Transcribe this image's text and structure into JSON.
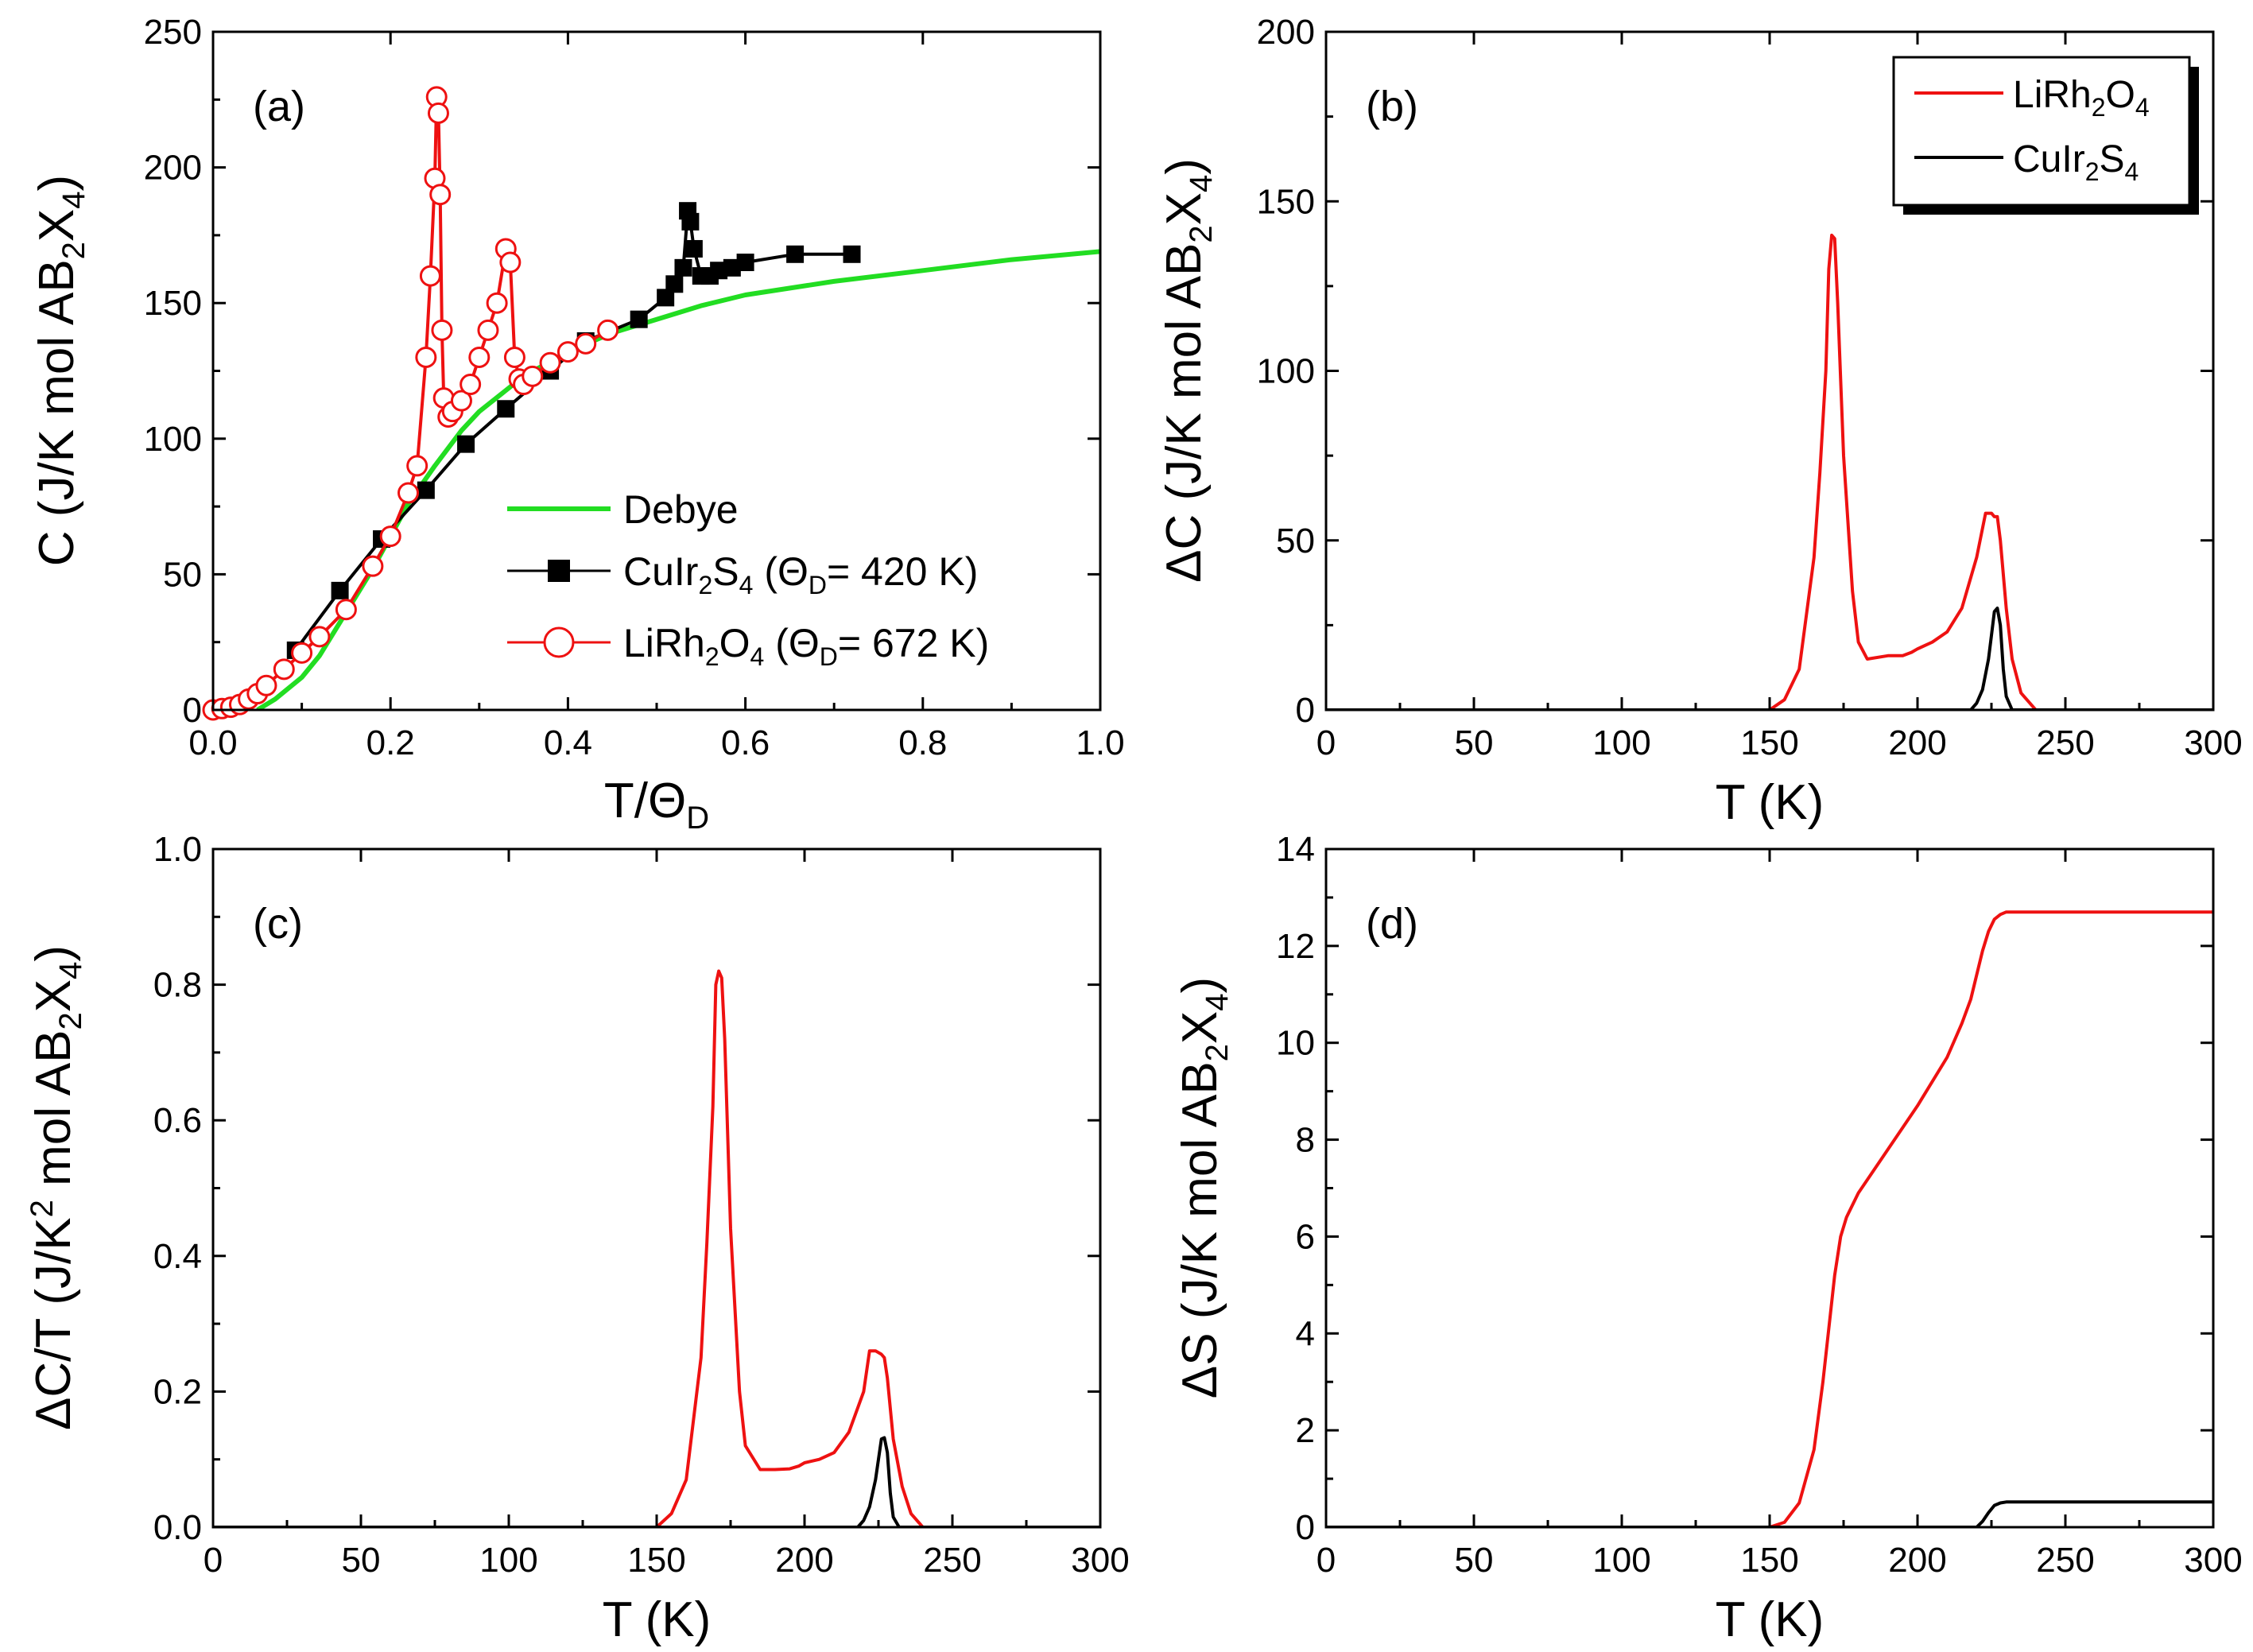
{
  "colors": {
    "red": "#ee1111",
    "black": "#000000",
    "green": "#22dd22"
  },
  "chart_data": [
    {
      "id": "a",
      "panel_label": "(a)",
      "type": "scatter",
      "xlabel_main": "T/Θ",
      "xlabel_sub": "D",
      "ylabel_main": "C (J/K mol AB",
      "ylabel_sub1": "2",
      "ylabel_mid": "X",
      "ylabel_sub2": "4",
      "ylabel_end": ")",
      "xlim": [
        0,
        1.0
      ],
      "ylim": [
        0,
        250
      ],
      "xticks": [
        "0.0",
        "0.2",
        "0.4",
        "0.6",
        "0.8",
        "1.0"
      ],
      "yticks": [
        "0",
        "50",
        "100",
        "150",
        "200",
        "250"
      ],
      "legend": [
        {
          "label": "Debye"
        },
        {
          "pre": "CuIr",
          "s1": "2",
          "mid": "S",
          "s2": "4",
          "post": " (Θ",
          "s3": "D",
          "end": "= 420 K)"
        },
        {
          "pre": "LiRh",
          "s1": "2",
          "mid": "O",
          "s2": "4",
          "post": " (Θ",
          "s3": "D",
          "end": "= 672 K)"
        }
      ],
      "series": [
        {
          "name": "Debye",
          "color": "green",
          "marker": "none",
          "x": [
            0.05,
            0.07,
            0.1,
            0.12,
            0.15,
            0.18,
            0.2,
            0.22,
            0.25,
            0.28,
            0.3,
            0.35,
            0.4,
            0.45,
            0.5,
            0.55,
            0.6,
            0.7,
            0.8,
            0.9,
            1.0
          ],
          "y": [
            0,
            4,
            12,
            20,
            36,
            52,
            64,
            76,
            90,
            103,
            110,
            123,
            132,
            139,
            144,
            149,
            153,
            158,
            162,
            166,
            169
          ]
        },
        {
          "name": "CuIr2S4",
          "color": "black",
          "marker": "square",
          "x": [
            0.093,
            0.143,
            0.19,
            0.24,
            0.285,
            0.33,
            0.38,
            0.42,
            0.48,
            0.51,
            0.52,
            0.53,
            0.535,
            0.538,
            0.542,
            0.55,
            0.56,
            0.57,
            0.585,
            0.6,
            0.656,
            0.72
          ],
          "y": [
            22,
            44,
            63,
            81,
            98,
            111,
            125,
            136,
            144,
            152,
            157,
            163,
            184,
            180,
            170,
            160,
            160,
            162,
            163,
            165,
            168,
            168
          ]
        },
        {
          "name": "LiRh2O4",
          "color": "red",
          "marker": "circle",
          "x": [
            0.0,
            0.01,
            0.02,
            0.03,
            0.04,
            0.05,
            0.06,
            0.08,
            0.1,
            0.12,
            0.15,
            0.18,
            0.2,
            0.22,
            0.23,
            0.24,
            0.245,
            0.25,
            0.252,
            0.254,
            0.256,
            0.258,
            0.26,
            0.265,
            0.27,
            0.28,
            0.29,
            0.3,
            0.31,
            0.32,
            0.33,
            0.335,
            0.34,
            0.345,
            0.35,
            0.36,
            0.38,
            0.4,
            0.42,
            0.445
          ],
          "y": [
            0,
            0.5,
            1,
            2,
            4,
            6,
            9,
            15,
            21,
            27,
            37,
            53,
            64,
            80,
            90,
            130,
            160,
            196,
            226,
            220,
            190,
            140,
            115,
            108,
            110,
            114,
            120,
            130,
            140,
            150,
            170,
            165,
            130,
            122,
            120,
            123,
            128,
            132,
            135,
            140
          ]
        }
      ]
    },
    {
      "id": "b",
      "panel_label": "(b)",
      "type": "line",
      "xlabel": "T (K)",
      "ylabel_main": "ΔC (J/K mol AB",
      "ylabel_sub1": "2",
      "ylabel_mid": "X",
      "ylabel_sub2": "4",
      "ylabel_end": ")",
      "xlim": [
        0,
        300
      ],
      "ylim": [
        0,
        200
      ],
      "xticks": [
        "0",
        "50",
        "100",
        "150",
        "200",
        "250",
        "300"
      ],
      "yticks": [
        "0",
        "50",
        "100",
        "150",
        "200"
      ],
      "legend": [
        {
          "pre": "LiRh",
          "s1": "2",
          "mid": "O",
          "s2": "4"
        },
        {
          "pre": "CuIr",
          "s1": "2",
          "mid": "S",
          "s2": "4"
        }
      ],
      "series": [
        {
          "name": "LiRh2O4",
          "color": "red",
          "x": [
            0,
            150,
            155,
            160,
            165,
            167,
            169,
            170,
            171,
            172,
            173,
            175,
            178,
            180,
            183,
            190,
            195,
            198,
            200,
            205,
            210,
            215,
            220,
            223,
            225,
            226,
            227,
            228,
            230,
            232,
            235,
            240,
            300
          ],
          "y": [
            0,
            0,
            3,
            12,
            45,
            70,
            100,
            130,
            140,
            139,
            120,
            75,
            35,
            20,
            15,
            16,
            16,
            17,
            18,
            20,
            23,
            30,
            45,
            58,
            58,
            57,
            57,
            50,
            30,
            15,
            5,
            0,
            0
          ]
        },
        {
          "name": "CuIr2S4",
          "color": "black",
          "x": [
            0,
            218,
            220,
            222,
            224,
            225,
            226,
            227,
            228,
            229,
            230,
            232,
            300
          ],
          "y": [
            0,
            0,
            2,
            6,
            15,
            22,
            29,
            30,
            25,
            12,
            4,
            0,
            0
          ]
        }
      ]
    },
    {
      "id": "c",
      "panel_label": "(c)",
      "type": "line",
      "xlabel": "T (K)",
      "ylabel_main": "ΔC/T (J/K",
      "ylabel_sup": "2",
      "ylabel_rest": " mol AB",
      "ylabel_sub1": "2",
      "ylabel_mid": "X",
      "ylabel_sub2": "4",
      "ylabel_end": ")",
      "xlim": [
        0,
        300
      ],
      "ylim": [
        0,
        1.0
      ],
      "xticks": [
        "0",
        "50",
        "100",
        "150",
        "200",
        "250",
        "300"
      ],
      "yticks": [
        "0.0",
        "0.2",
        "0.4",
        "0.6",
        "0.8",
        "1.0"
      ],
      "series": [
        {
          "name": "LiRh2O4",
          "color": "red",
          "x": [
            0,
            150,
            155,
            160,
            165,
            167,
            169,
            170,
            171,
            172,
            173,
            175,
            178,
            180,
            185,
            190,
            195,
            198,
            200,
            205,
            210,
            215,
            220,
            222,
            224,
            226,
            227,
            228,
            230,
            233,
            236,
            240,
            300
          ],
          "y": [
            0,
            0,
            0.02,
            0.07,
            0.25,
            0.42,
            0.62,
            0.8,
            0.82,
            0.81,
            0.72,
            0.44,
            0.2,
            0.12,
            0.085,
            0.085,
            0.086,
            0.09,
            0.095,
            0.1,
            0.11,
            0.14,
            0.2,
            0.26,
            0.26,
            0.255,
            0.25,
            0.22,
            0.13,
            0.06,
            0.02,
            0,
            0
          ]
        },
        {
          "name": "CuIr2S4",
          "color": "black",
          "x": [
            0,
            218,
            220,
            222,
            224,
            225,
            226,
            227,
            228,
            229,
            230,
            232,
            300
          ],
          "y": [
            0,
            0,
            0.01,
            0.03,
            0.07,
            0.1,
            0.13,
            0.132,
            0.11,
            0.05,
            0.015,
            0,
            0
          ]
        }
      ]
    },
    {
      "id": "d",
      "panel_label": "(d)",
      "type": "line",
      "xlabel": "T (K)",
      "ylabel_main": "ΔS (J/K mol AB",
      "ylabel_sub1": "2",
      "ylabel_mid": "X",
      "ylabel_sub2": "4",
      "ylabel_end": ")",
      "xlim": [
        0,
        300
      ],
      "ylim": [
        0,
        14
      ],
      "xticks": [
        "0",
        "50",
        "100",
        "150",
        "200",
        "250",
        "300"
      ],
      "yticks": [
        "0",
        "2",
        "4",
        "6",
        "8",
        "10",
        "12",
        "14"
      ],
      "series": [
        {
          "name": "LiRh2O4",
          "color": "red",
          "x": [
            0,
            150,
            155,
            160,
            165,
            168,
            170,
            172,
            174,
            176,
            180,
            190,
            200,
            210,
            215,
            218,
            220,
            222,
            224,
            226,
            228,
            230,
            235,
            300
          ],
          "y": [
            0,
            0,
            0.1,
            0.5,
            1.6,
            3.0,
            4.1,
            5.2,
            6.0,
            6.4,
            6.9,
            7.8,
            8.7,
            9.7,
            10.4,
            10.9,
            11.4,
            11.9,
            12.3,
            12.55,
            12.65,
            12.7,
            12.7,
            12.7
          ]
        },
        {
          "name": "CuIr2S4",
          "color": "black",
          "x": [
            0,
            220,
            222,
            224,
            226,
            228,
            230,
            235,
            300
          ],
          "y": [
            0,
            0,
            0.12,
            0.3,
            0.45,
            0.5,
            0.52,
            0.52,
            0.52
          ]
        }
      ]
    }
  ]
}
